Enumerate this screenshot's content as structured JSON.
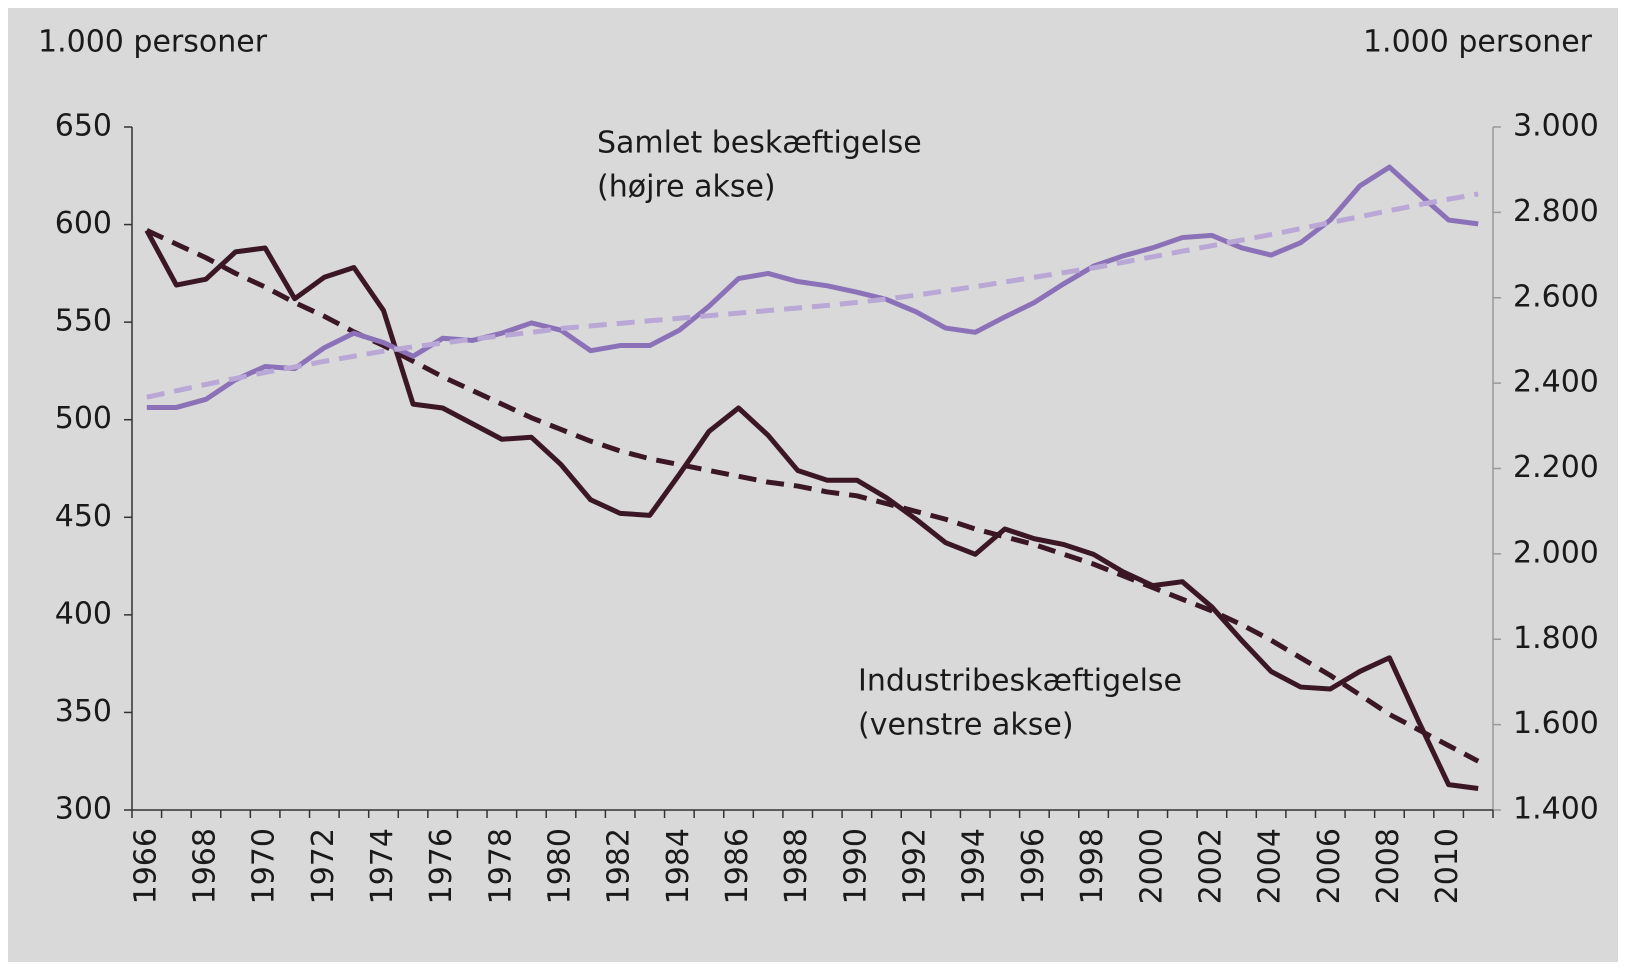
{
  "chart_data": {
    "type": "line",
    "y_label": "1.000 personer",
    "y2_label": "1.000 personer",
    "annotations": [
      {
        "lines": [
          "Samlet beskæftigelse",
          "(højre akse)"
        ]
      },
      {
        "lines": [
          "Industribeskæftigelse",
          "(venstre akse)"
        ]
      }
    ],
    "categories": [
      "1966",
      null,
      "1968",
      null,
      "1970",
      null,
      "1972",
      null,
      "1974",
      null,
      "1976",
      null,
      "1978",
      null,
      "1980",
      null,
      "1982",
      null,
      "1984",
      null,
      "1986",
      null,
      "1988",
      null,
      "1990",
      null,
      "1992",
      null,
      "1994",
      null,
      "1996",
      null,
      "1998",
      null,
      "2000",
      null,
      "2002",
      null,
      "2004",
      null,
      "2006",
      null,
      "2008",
      null,
      "2010",
      null
    ],
    "series": [
      {
        "color": "#3b1726",
        "style": "solid",
        "axis": "y",
        "values": [
          597,
          569,
          572,
          586,
          588,
          562,
          573,
          578,
          556,
          508,
          506,
          498,
          490,
          491,
          477,
          459,
          452,
          451,
          472,
          494,
          506,
          492,
          474,
          469,
          469,
          460,
          449,
          437,
          431,
          444,
          439,
          436,
          431,
          422,
          415,
          417,
          404,
          387,
          371,
          363,
          362,
          371,
          378,
          345,
          313,
          311
        ]
      },
      {
        "color": "#3b1726",
        "style": "dashed",
        "axis": "y",
        "values": [
          597,
          590,
          583,
          575,
          568,
          560,
          553,
          545,
          538,
          530,
          522,
          515,
          508,
          501,
          495,
          489,
          484,
          480,
          477,
          474,
          471,
          468,
          466,
          463,
          461,
          457,
          453,
          449,
          444,
          440,
          436,
          431,
          426,
          420,
          414,
          408,
          402,
          395,
          387,
          378,
          369,
          359,
          349,
          341,
          333,
          325
        ]
      },
      {
        "color": "#8b72b8",
        "style": "solid",
        "axis": "y2",
        "values": [
          2343,
          2343,
          2362,
          2408,
          2439,
          2434,
          2483,
          2517,
          2495,
          2463,
          2505,
          2500,
          2517,
          2541,
          2524,
          2476,
          2488,
          2488,
          2524,
          2580,
          2645,
          2657,
          2638,
          2628,
          2613,
          2596,
          2567,
          2529,
          2519,
          2555,
          2589,
          2633,
          2674,
          2698,
          2717,
          2741,
          2746,
          2717,
          2700,
          2729,
          2782,
          2862,
          2906,
          2843,
          2782,
          2773
        ]
      },
      {
        "color": "#b9a7d6",
        "style": "dashed",
        "axis": "y2",
        "values": [
          2367,
          2382,
          2397,
          2411,
          2425,
          2438,
          2451,
          2463,
          2475,
          2485,
          2494,
          2503,
          2511,
          2519,
          2528,
          2534,
          2540,
          2546,
          2552,
          2558,
          2564,
          2570,
          2576,
          2582,
          2589,
          2597,
          2606,
          2616,
          2626,
          2637,
          2648,
          2659,
          2670,
          2683,
          2696,
          2709,
          2722,
          2735,
          2748,
          2762,
          2776,
          2790,
          2804,
          2818,
          2831,
          2843
        ]
      }
    ],
    "ylim": [
      300,
      650
    ],
    "yticks": [
      300,
      350,
      400,
      450,
      500,
      550,
      600,
      650
    ],
    "y2lim": [
      1400,
      3000
    ],
    "y2ticks": [
      {
        "value": 1400,
        "label": "1.400"
      },
      {
        "value": 1600,
        "label": "1.600"
      },
      {
        "value": 1800,
        "label": "1.800"
      },
      {
        "value": 2000,
        "label": "2.000"
      },
      {
        "value": 2200,
        "label": "2.200"
      },
      {
        "value": 2400,
        "label": "2.400"
      },
      {
        "value": 2600,
        "label": "2.600"
      },
      {
        "value": 2800,
        "label": "2.800"
      },
      {
        "value": 3000,
        "label": "3.000"
      }
    ],
    "grid": false
  }
}
